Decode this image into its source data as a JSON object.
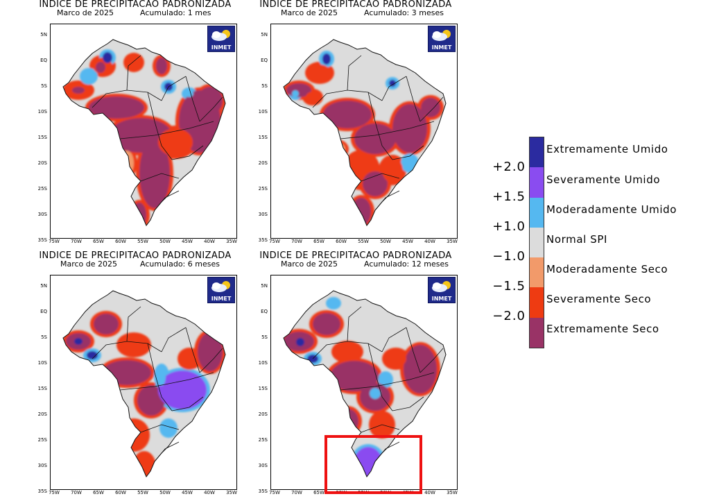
{
  "colors": {
    "extremamente_umido": "#2b2ba0",
    "severamente_umido": "#8a4cf0",
    "moderadamente_umido": "#55b8f0",
    "normal": "#dcdcdc",
    "moderadamente_seco": "#f29a6a",
    "severamente_seco": "#ee3b12",
    "extremamente_seco": "#993366",
    "highlight": "#ee1111"
  },
  "panels": [
    {
      "title": "INDICE DE PRECIPITACAO PADRONIZADA",
      "subtitle_month": "Marco de 2025",
      "subtitle_acc": "Acumulado: 1 mes"
    },
    {
      "title": "INDICE DE PRECIPITACAO PADRONIZADA",
      "subtitle_month": "Marco de 2025",
      "subtitle_acc": "Acumulado: 3 meses"
    },
    {
      "title": "INDICE DE PRECIPITACAO PADRONIZADA",
      "subtitle_month": "Marco de 2025",
      "subtitle_acc": "Acumulado: 6 meses"
    },
    {
      "title": "INDICE DE PRECIPITACAO PADRONIZADA",
      "subtitle_month": "Marco de 2025",
      "subtitle_acc": "Acumulado: 12 meses"
    }
  ],
  "lat_ticks": [
    "5N",
    "EQ",
    "5S",
    "10S",
    "15S",
    "20S",
    "25S",
    "30S",
    "35S"
  ],
  "lon_ticks": [
    "75W",
    "70W",
    "65W",
    "60W",
    "55W",
    "50W",
    "45W",
    "40W",
    "35W"
  ],
  "logo_text": "INMET",
  "legend": {
    "labels": [
      "Extremamente Umido",
      "Severamente Umido",
      "Moderadamente Umido",
      "Normal SPI",
      "Moderadamente Seco",
      "Severamente Seco",
      "Extremamente Seco"
    ],
    "ticks": [
      "+2.0",
      "+1.5",
      "+1.0",
      "−1.0",
      "−1.5",
      "−2.0"
    ]
  }
}
